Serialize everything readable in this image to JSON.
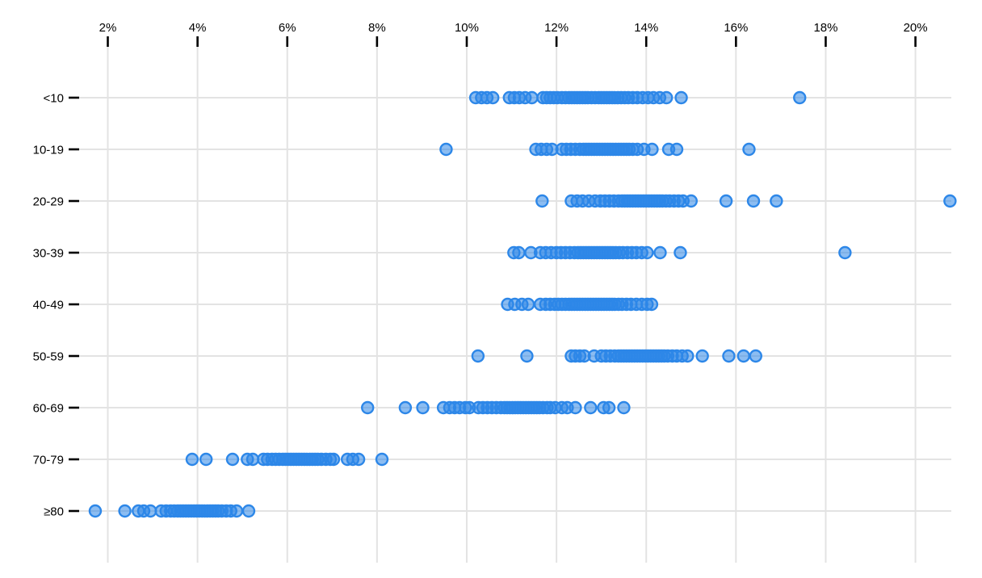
{
  "chart_data": {
    "type": "scatter",
    "variant": "strip-plot",
    "title": "",
    "x_axis": {
      "position": "top",
      "ticks": [
        2,
        4,
        6,
        8,
        10,
        12,
        14,
        16,
        18,
        20
      ],
      "tick_label_suffix": "%",
      "range": [
        1.4,
        20.8
      ],
      "grid": true
    },
    "y_axis": {
      "categories": [
        "<10",
        "10-19",
        "20-29",
        "30-39",
        "40-49",
        "50-59",
        "60-69",
        "70-79",
        "≥80"
      ],
      "grid": true
    },
    "legend": "none",
    "point_style": {
      "stroke_color": "#2d87e8",
      "fill_color": "#2d87e8",
      "fill_opacity": 0.55,
      "radius_px": 7
    },
    "grid_color": "#e3e3e3",
    "axis_color": "#000000",
    "series": [
      {
        "category": "<10",
        "values": [
          10.2,
          10.33,
          10.45,
          10.58,
          10.95,
          11.06,
          11.17,
          11.3,
          11.45,
          11.7,
          11.78,
          11.86,
          11.94,
          12.02,
          12.12,
          12.2,
          12.28,
          12.34,
          12.4,
          12.46,
          12.52,
          12.58,
          12.64,
          12.7,
          12.78,
          12.86,
          12.94,
          13.0,
          13.06,
          13.12,
          13.18,
          13.24,
          13.3,
          13.37,
          13.44,
          13.52,
          13.6,
          13.7,
          13.8,
          13.92,
          14.04,
          14.16,
          14.3,
          14.45,
          14.78,
          17.42
        ]
      },
      {
        "category": "10-19",
        "values": [
          9.54,
          11.54,
          11.66,
          11.78,
          11.9,
          12.12,
          12.22,
          12.32,
          12.42,
          12.52,
          12.6,
          12.66,
          12.72,
          12.78,
          12.84,
          12.9,
          12.96,
          13.02,
          13.08,
          13.14,
          13.2,
          13.26,
          13.32,
          13.38,
          13.44,
          13.5,
          13.56,
          13.62,
          13.7,
          13.8,
          13.95,
          14.13,
          14.5,
          14.68,
          16.29
        ]
      },
      {
        "category": "20-29",
        "values": [
          11.68,
          12.33,
          12.46,
          12.58,
          12.72,
          12.86,
          12.98,
          13.08,
          13.18,
          13.28,
          13.38,
          13.46,
          13.52,
          13.58,
          13.64,
          13.7,
          13.76,
          13.82,
          13.88,
          13.94,
          14.0,
          14.06,
          14.12,
          14.18,
          14.24,
          14.3,
          14.36,
          14.44,
          14.52,
          14.62,
          14.72,
          14.82,
          15.0,
          15.78,
          16.39,
          16.9,
          20.77
        ]
      },
      {
        "category": "30-39",
        "values": [
          11.05,
          11.16,
          11.43,
          11.64,
          11.76,
          11.88,
          12.0,
          12.1,
          12.2,
          12.3,
          12.4,
          12.48,
          12.54,
          12.6,
          12.66,
          12.72,
          12.78,
          12.84,
          12.9,
          12.96,
          13.02,
          13.08,
          13.14,
          13.2,
          13.26,
          13.32,
          13.4,
          13.48,
          13.58,
          13.68,
          13.78,
          13.9,
          14.02,
          14.31,
          14.76,
          18.43
        ]
      },
      {
        "category": "40-49",
        "values": [
          10.91,
          11.07,
          11.23,
          11.37,
          11.64,
          11.76,
          11.86,
          11.96,
          12.04,
          12.12,
          12.2,
          12.28,
          12.34,
          12.4,
          12.46,
          12.52,
          12.58,
          12.64,
          12.7,
          12.76,
          12.82,
          12.88,
          12.94,
          13.0,
          13.06,
          13.12,
          13.18,
          13.24,
          13.3,
          13.38,
          13.46,
          13.56,
          13.66,
          13.78,
          13.9,
          14.02,
          14.12
        ]
      },
      {
        "category": "50-59",
        "values": [
          10.25,
          11.34,
          12.33,
          12.42,
          12.52,
          12.62,
          12.84,
          13.0,
          13.1,
          13.2,
          13.3,
          13.38,
          13.44,
          13.5,
          13.56,
          13.62,
          13.68,
          13.74,
          13.8,
          13.86,
          13.92,
          13.98,
          14.04,
          14.1,
          14.16,
          14.22,
          14.28,
          14.34,
          14.4,
          14.48,
          14.58,
          14.68,
          14.8,
          14.92,
          15.25,
          15.84,
          16.17,
          16.44
        ]
      },
      {
        "category": "60-69",
        "values": [
          7.79,
          8.63,
          9.02,
          9.48,
          9.62,
          9.73,
          9.84,
          9.97,
          10.06,
          10.26,
          10.36,
          10.46,
          10.56,
          10.66,
          10.76,
          10.84,
          10.9,
          10.96,
          11.02,
          11.08,
          11.14,
          11.2,
          11.26,
          11.32,
          11.38,
          11.44,
          11.5,
          11.56,
          11.62,
          11.7,
          11.79,
          11.86,
          11.97,
          12.12,
          12.24,
          12.42,
          12.76,
          13.05,
          13.17,
          13.5
        ]
      },
      {
        "category": "70-79",
        "values": [
          3.88,
          4.19,
          4.78,
          5.11,
          5.23,
          5.47,
          5.56,
          5.66,
          5.74,
          5.82,
          5.9,
          5.96,
          6.02,
          6.08,
          6.14,
          6.2,
          6.26,
          6.32,
          6.38,
          6.44,
          6.5,
          6.56,
          6.62,
          6.68,
          6.76,
          6.86,
          6.96,
          7.03,
          7.34,
          7.46,
          7.59,
          8.11
        ]
      },
      {
        "category": "≥80",
        "values": [
          1.72,
          2.38,
          2.68,
          2.8,
          2.95,
          3.19,
          3.3,
          3.4,
          3.48,
          3.56,
          3.62,
          3.68,
          3.74,
          3.8,
          3.86,
          3.92,
          3.98,
          4.04,
          4.1,
          4.16,
          4.22,
          4.28,
          4.34,
          4.4,
          4.46,
          4.54,
          4.64,
          4.74,
          4.87,
          5.14
        ]
      }
    ]
  }
}
